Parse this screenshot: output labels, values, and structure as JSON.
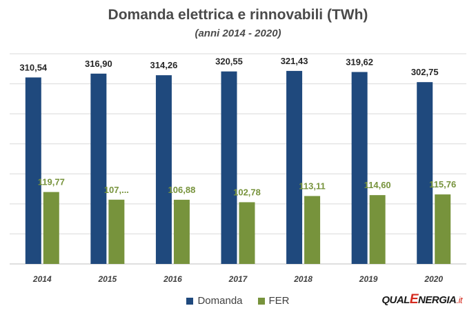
{
  "chart_data": {
    "type": "bar",
    "title": "Domanda elettrica e rinnovabili (TWh)",
    "subtitle": "(anni 2014 - 2020)",
    "categories": [
      "2014",
      "2015",
      "2016",
      "2017",
      "2018",
      "2019",
      "2020"
    ],
    "series": [
      {
        "name": "Domanda",
        "color": "#1f497d",
        "values": [
          310.54,
          316.9,
          314.26,
          320.55,
          321.43,
          319.62,
          302.75
        ],
        "labels": [
          "310,54",
          "316,90",
          "314,26",
          "320,55",
          "321,43",
          "319,62",
          "302,75"
        ],
        "label_color": "#262626"
      },
      {
        "name": "FER",
        "color": "#77933c",
        "values": [
          119.77,
          107.0,
          106.88,
          102.78,
          113.11,
          114.6,
          115.76
        ],
        "labels": [
          "119,77",
          "107,...",
          "106,88",
          "102,78",
          "113,11",
          "114,60",
          "115,76"
        ],
        "label_color": "#77933c"
      }
    ],
    "ylim": [
      0,
      350
    ],
    "yticks": [
      0,
      50,
      100,
      150,
      200,
      250,
      300,
      350
    ],
    "show_y_tick_labels": false,
    "grid": true,
    "legend_position": "bottom-center"
  },
  "logo": {
    "qual": "QUAL",
    "e": "E",
    "nergia": "NERGIA",
    "it": ".it"
  }
}
